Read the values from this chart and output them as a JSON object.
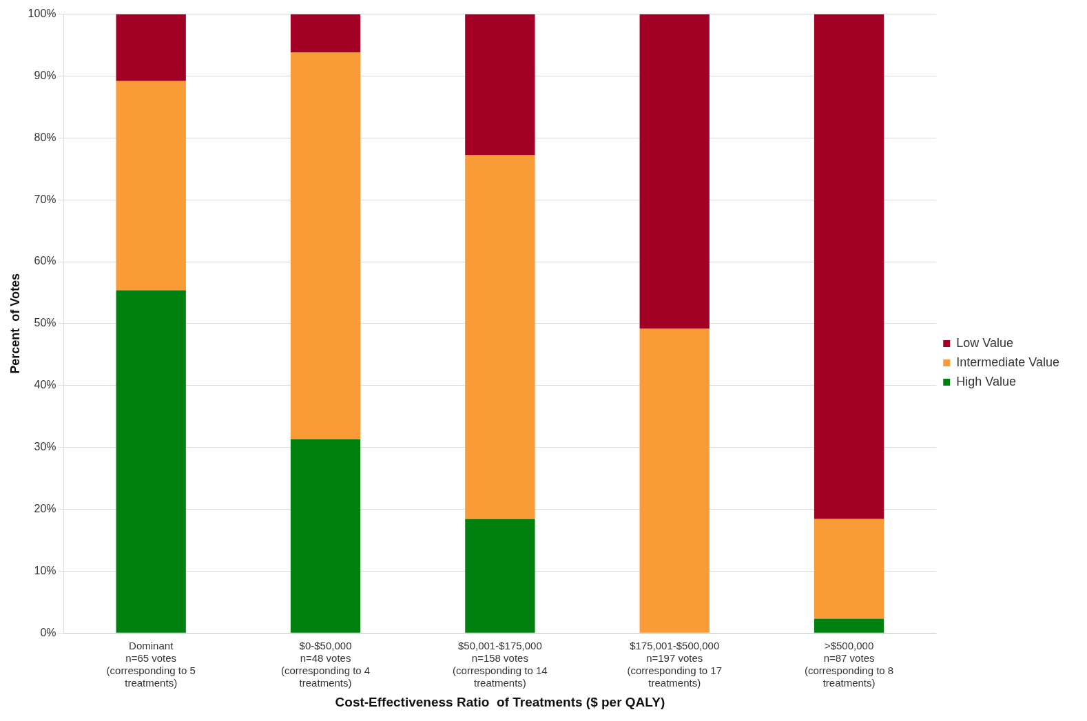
{
  "chart_data": {
    "type": "bar",
    "stacked": true,
    "xlabel": "Cost-Effectiveness Ratio  of Treatments ($ per QALY)",
    "ylabel": "Percent  of Votes",
    "categories": [
      "Dominant\nn=65 votes\n(corresponding to 5\ntreatments)",
      "$0-$50,000\nn=48 votes\n(corresponding to 4\ntreatments)",
      "$50,001-$175,000\nn=158 votes\n(corresponding to 14\ntreatments)",
      "$175,001-$500,000\nn=197 votes\n(corresponding to 17\ntreatments)",
      ">$500,000\nn=87 votes\n(corresponding to 8\ntreatments)"
    ],
    "series": [
      {
        "name": "High Value",
        "color": "#00800f",
        "values": [
          55.4,
          31.3,
          18.4,
          0,
          2.3
        ]
      },
      {
        "name": "Intermediate Value",
        "color": "#f99b36",
        "values": [
          33.8,
          62.5,
          58.8,
          49.2,
          16.1
        ]
      },
      {
        "name": "Low Value",
        "color": "#a20024",
        "values": [
          10.8,
          6.2,
          22.8,
          50.8,
          81.6
        ]
      }
    ],
    "ylim": [
      0,
      100
    ],
    "yticks": [
      {
        "value": 0,
        "label": "0%"
      },
      {
        "value": 10,
        "label": "10%"
      },
      {
        "value": 20,
        "label": "20%"
      },
      {
        "value": 30,
        "label": "30%"
      },
      {
        "value": 40,
        "label": "40%"
      },
      {
        "value": 50,
        "label": "50%"
      },
      {
        "value": 60,
        "label": "60%"
      },
      {
        "value": 70,
        "label": "70%"
      },
      {
        "value": 80,
        "label": "80%"
      },
      {
        "value": 90,
        "label": "90%"
      },
      {
        "value": 100,
        "label": "100%"
      }
    ],
    "grid": "y",
    "legend": "right"
  }
}
